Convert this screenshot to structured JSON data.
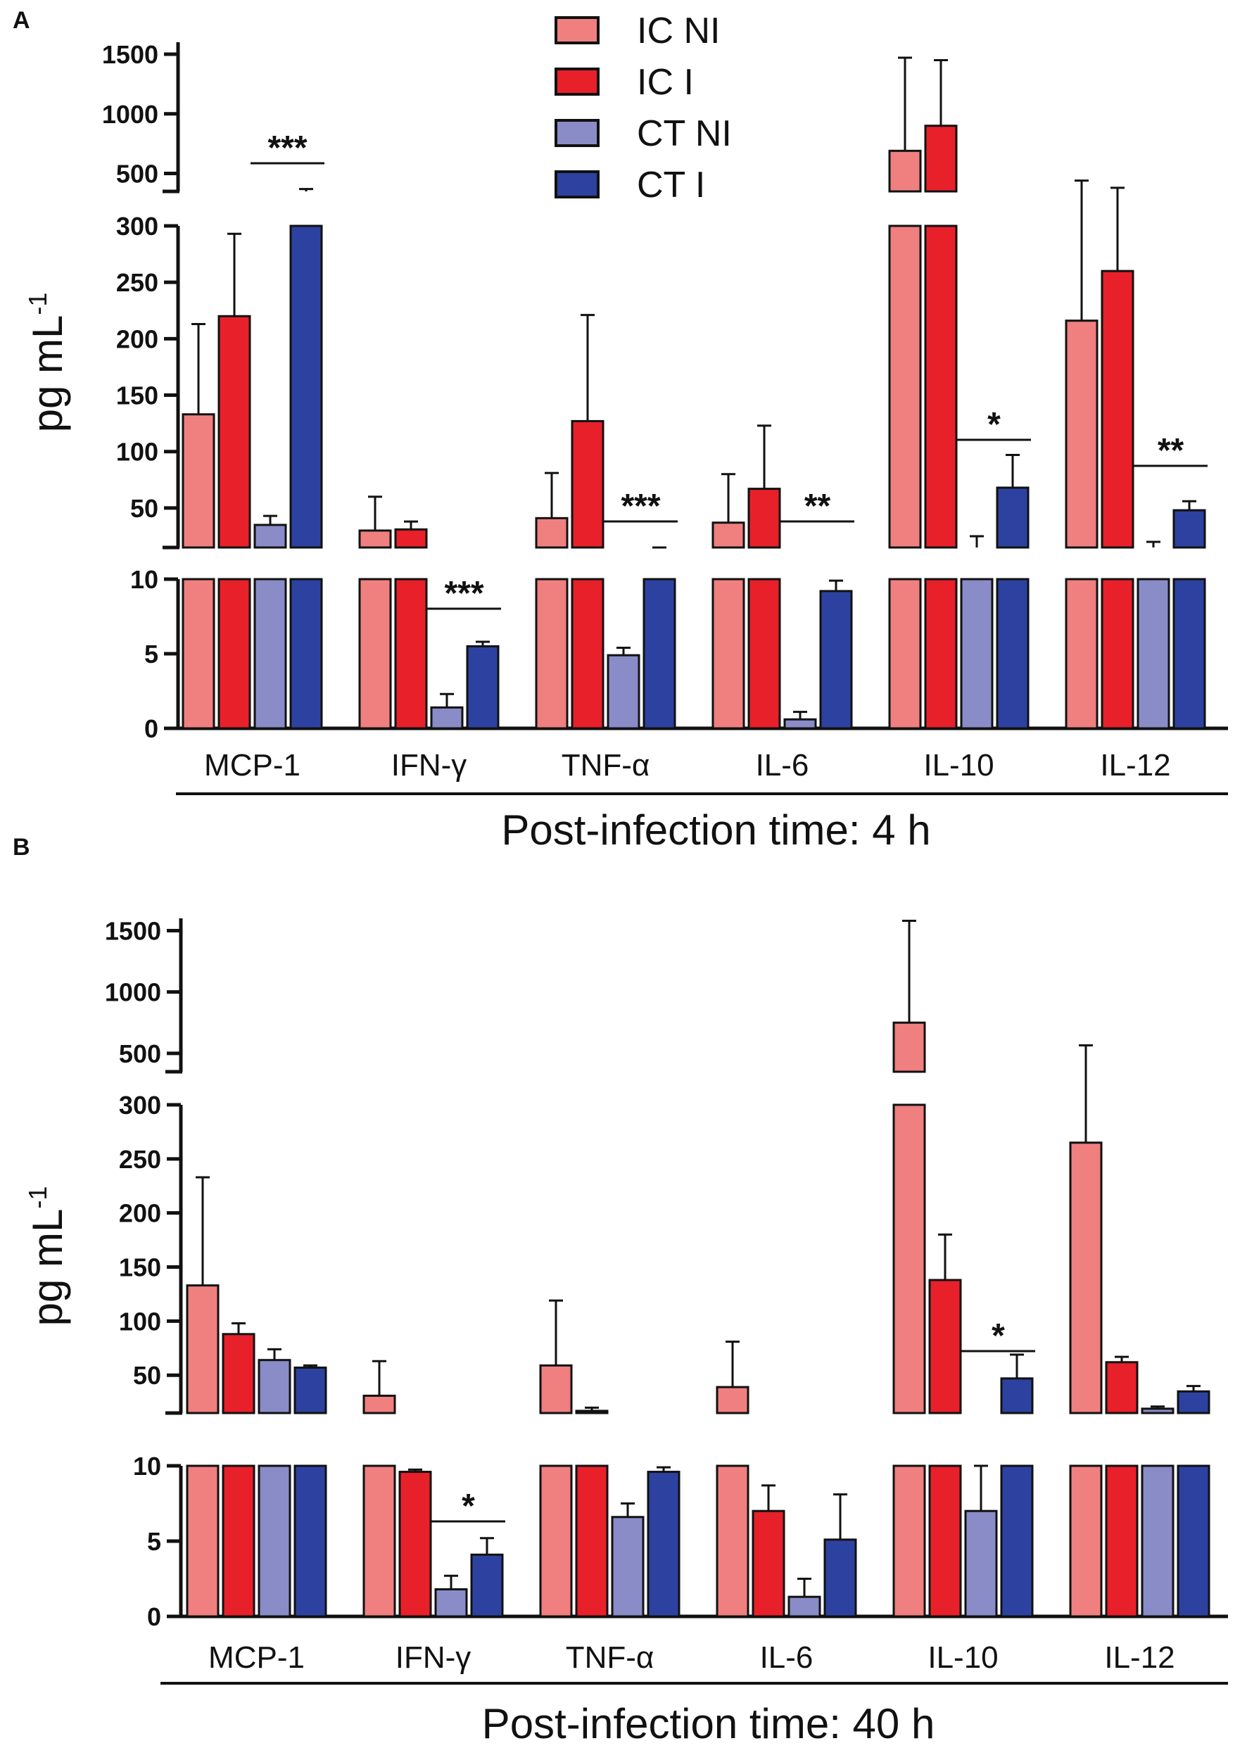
{
  "figure": {
    "legend": [
      {
        "label": "IC NI",
        "color": "#F07F7F"
      },
      {
        "label": "IC I",
        "color": "#E8202A"
      },
      {
        "label": "CT NI",
        "color": "#8A8CC8"
      },
      {
        "label": "CT I",
        "color": "#2D42A0"
      }
    ]
  },
  "chart_data": [
    {
      "type": "bar",
      "panel": "A",
      "title": "",
      "xlabel": "Post-infection time: 4 h",
      "ylabel_main": "pg mL",
      "ylabel_sup": "-1",
      "categories": [
        "MCP-1",
        "IFN-γ",
        "TNF-α",
        "IL-6",
        "IL-10",
        "IL-12"
      ],
      "axis_breaks": [
        {
          "range": [
            0,
            10
          ],
          "ticks": [
            "0",
            "5",
            "10"
          ]
        },
        {
          "range": [
            15,
            300
          ],
          "ticks": [
            "50",
            "100",
            "150",
            "200",
            "250",
            "300"
          ]
        },
        {
          "range": [
            350,
            1600
          ],
          "ticks": [
            "500",
            "1000",
            "1500"
          ]
        }
      ],
      "series": [
        {
          "name": "IC NI",
          "values": [
            133,
            30,
            41,
            37,
            690,
            216
          ],
          "errors": [
            80,
            30,
            40,
            43,
            780,
            225
          ]
        },
        {
          "name": "IC I",
          "values": [
            220,
            31,
            127,
            67,
            900,
            260
          ],
          "errors": [
            73,
            7,
            94,
            56,
            550,
            120
          ]
        },
        {
          "name": "CT NI",
          "values": [
            35,
            1.4,
            4.9,
            0.6,
            14,
            12
          ],
          "errors": [
            8,
            0.9,
            0.5,
            0.5,
            11,
            8
          ]
        },
        {
          "name": "CT I",
          "values": [
            320,
            5.5,
            12,
            9.2,
            68,
            48
          ],
          "errors": [
            50,
            0.3,
            1,
            0.7,
            29,
            8
          ]
        }
      ],
      "significance": [
        {
          "category": "MCP-1",
          "text": "***"
        },
        {
          "category": "IFN-γ",
          "text": "***"
        },
        {
          "category": "TNF-α",
          "text": "***"
        },
        {
          "category": "IL-6",
          "text": "**"
        },
        {
          "category": "IL-10",
          "text": "*"
        },
        {
          "category": "IL-12",
          "text": "**"
        }
      ]
    },
    {
      "type": "bar",
      "panel": "B",
      "title": "",
      "xlabel": "Post-infection time: 40 h",
      "ylabel_main": "pg mL",
      "ylabel_sup": "-1",
      "categories": [
        "MCP-1",
        "IFN-γ",
        "TNF-α",
        "IL-6",
        "IL-10",
        "IL-12"
      ],
      "axis_breaks": [
        {
          "range": [
            0,
            10
          ],
          "ticks": [
            "0",
            "5",
            "10"
          ]
        },
        {
          "range": [
            15,
            300
          ],
          "ticks": [
            "50",
            "100",
            "150",
            "200",
            "250",
            "300"
          ]
        },
        {
          "range": [
            350,
            1600
          ],
          "ticks": [
            "500",
            "1000",
            "1500"
          ]
        }
      ],
      "series": [
        {
          "name": "IC NI",
          "values": [
            133,
            31,
            59,
            39,
            750,
            265
          ],
          "errors": [
            100,
            32,
            60,
            42,
            830,
            300
          ]
        },
        {
          "name": "IC I",
          "values": [
            88,
            9.6,
            17,
            7,
            138,
            62
          ],
          "errors": [
            10,
            0.15,
            3,
            1.7,
            42,
            5
          ]
        },
        {
          "name": "CT NI",
          "values": [
            64,
            1.8,
            6.6,
            1.3,
            7,
            19
          ],
          "errors": [
            10,
            0.9,
            0.9,
            1.2,
            3,
            2
          ]
        },
        {
          "name": "CT I",
          "values": [
            57,
            4.1,
            9.6,
            5.1,
            47,
            35
          ],
          "errors": [
            2,
            1.1,
            0.3,
            3,
            22,
            5
          ]
        }
      ],
      "significance": [
        {
          "category": "IFN-γ",
          "text": "*"
        },
        {
          "category": "IL-10",
          "text": "*"
        }
      ]
    }
  ]
}
